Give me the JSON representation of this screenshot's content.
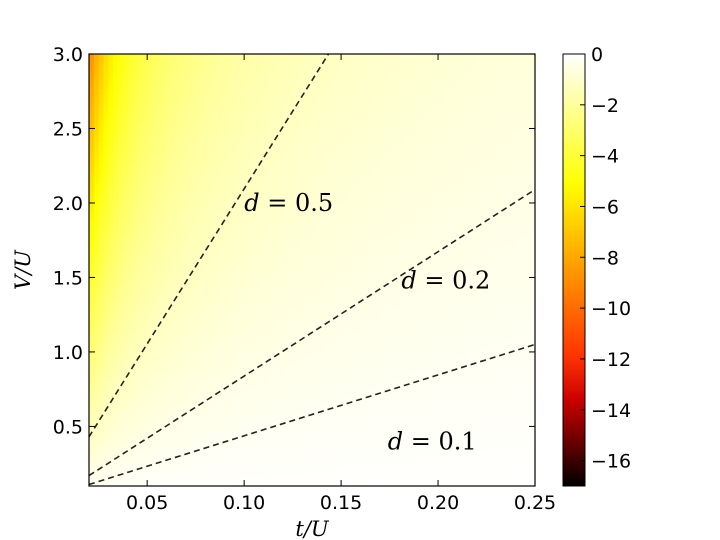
{
  "chart_data": {
    "type": "heatmap",
    "title": "",
    "xlabel": "t/U",
    "ylabel": "V/U",
    "xlim": [
      0.02,
      0.25
    ],
    "ylim": [
      0.1,
      3.0
    ],
    "x_ticks": [
      0.05,
      0.1,
      0.15,
      0.2,
      0.25
    ],
    "x_tick_labels": [
      "0.05",
      "0.10",
      "0.15",
      "0.20",
      "0.25"
    ],
    "y_ticks": [
      0.5,
      1.0,
      1.5,
      2.0,
      2.5,
      3.0
    ],
    "y_tick_labels": [
      "0.5",
      "1.0",
      "1.5",
      "2.0",
      "2.5",
      "3.0"
    ],
    "grid": false,
    "colormap": "hot",
    "colorbar": {
      "range": [
        -17,
        0
      ],
      "ticks": [
        0,
        -2,
        -4,
        -6,
        -8,
        -10,
        -12,
        -14,
        -16
      ],
      "tick_labels": [
        "0",
        "−2",
        "−4",
        "−6",
        "−8",
        "−10",
        "−12",
        "−14",
        "−16"
      ]
    },
    "field": "z = -0.05 * (V/t)",
    "contours": [
      {
        "label": "d = 0.5",
        "var": "d",
        "value": "0.5",
        "x": [
          0.02,
          0.1435
        ],
        "y": [
          0.43,
          3.0
        ],
        "label_at": [
          0.123,
          2.0
        ]
      },
      {
        "label": "d = 0.2",
        "var": "d",
        "value": "0.2",
        "x": [
          0.02,
          0.25
        ],
        "y": [
          0.17,
          2.09
        ],
        "label_at": [
          0.204,
          1.48
        ]
      },
      {
        "label": "d = 0.1",
        "var": "d",
        "value": "0.1",
        "x": [
          0.02,
          0.25
        ],
        "y": [
          0.11,
          1.05
        ],
        "label_at": [
          0.197,
          0.4
        ]
      }
    ]
  }
}
